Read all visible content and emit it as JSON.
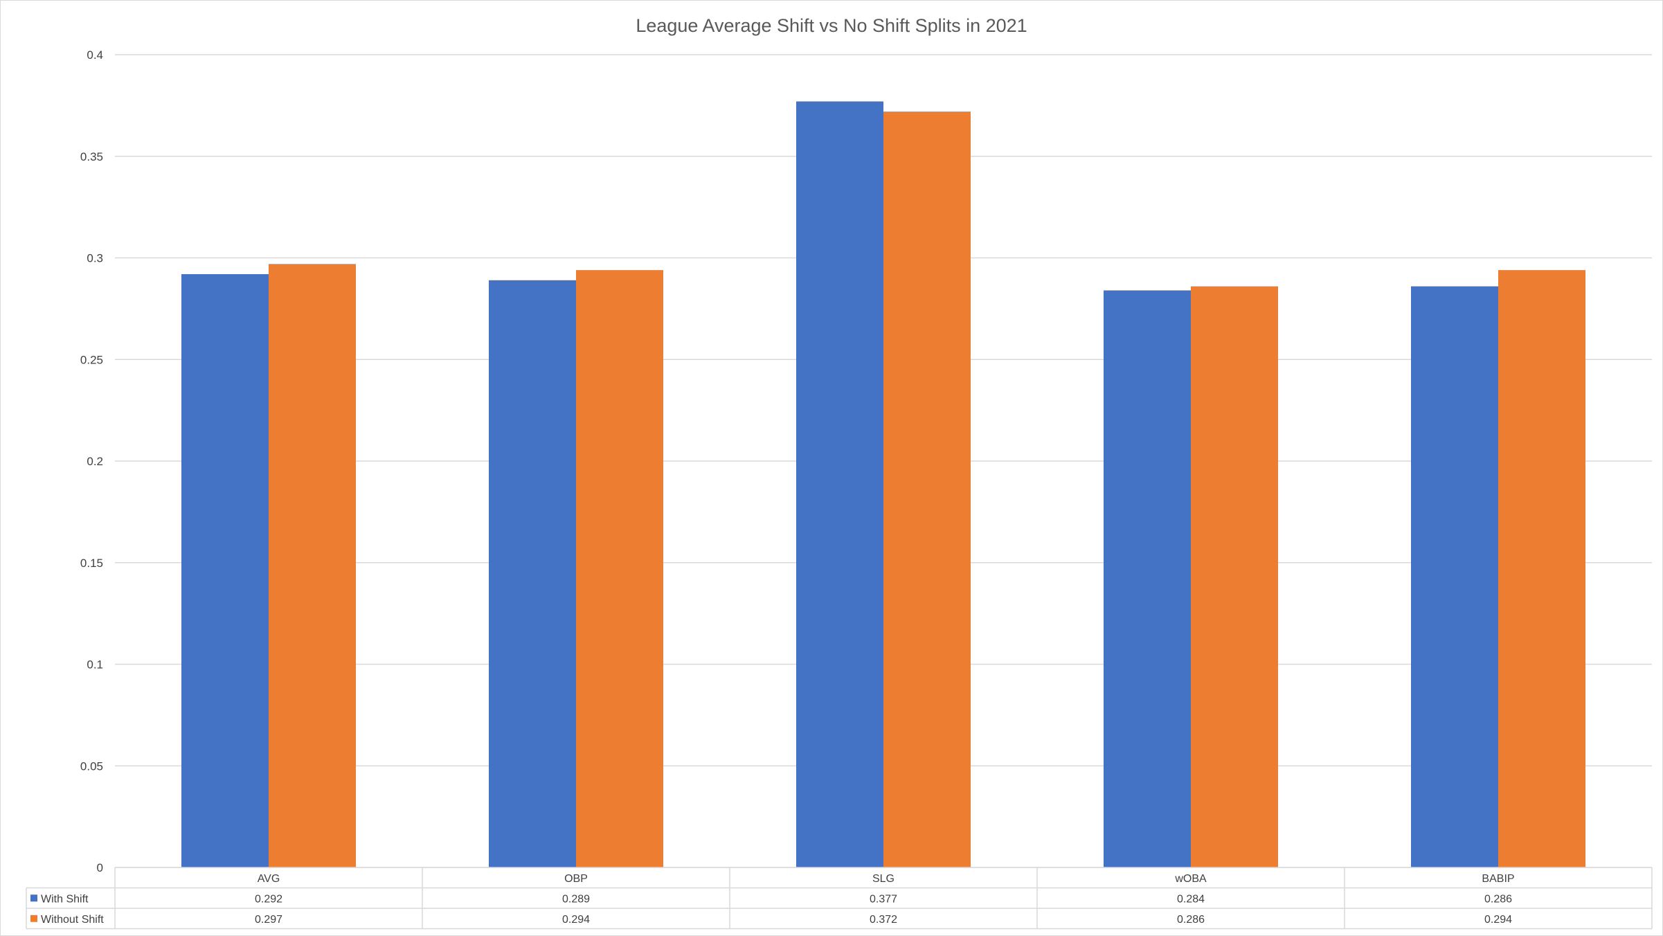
{
  "chart_data": {
    "type": "bar",
    "title": "League Average Shift vs No Shift Splits in 2021",
    "xlabel": "",
    "ylabel": "",
    "categories": [
      "AVG",
      "OBP",
      "SLG",
      "wOBA",
      "BABIP"
    ],
    "series": [
      {
        "name": "With Shift",
        "color": "#4472c4",
        "values": [
          0.292,
          0.289,
          0.377,
          0.284,
          0.286
        ],
        "value_labels": [
          "0.292",
          "0.289",
          "0.377",
          "0.284",
          "0.286"
        ]
      },
      {
        "name": "Without Shift",
        "color": "#ed7d31",
        "values": [
          0.297,
          0.294,
          0.372,
          0.286,
          0.294
        ],
        "value_labels": [
          "0.297",
          "0.294",
          "0.372",
          "0.286",
          "0.294"
        ]
      }
    ],
    "ylim": [
      0,
      0.4
    ],
    "yticks": [
      0,
      0.05,
      0.1,
      0.15,
      0.2,
      0.25,
      0.3,
      0.35,
      0.4
    ],
    "ytick_labels": [
      "0",
      "0.05",
      "0.1",
      "0.15",
      "0.2",
      "0.25",
      "0.3",
      "0.35",
      "0.4"
    ],
    "grid": true,
    "legend": "data-table-below"
  }
}
